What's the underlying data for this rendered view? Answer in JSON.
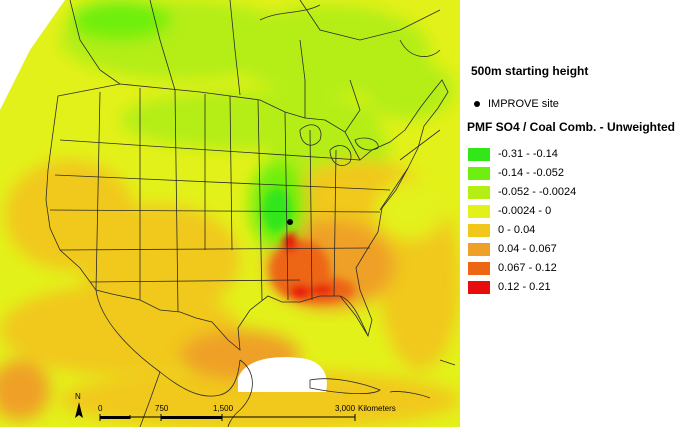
{
  "map": {
    "title": "500m starting height",
    "site_label": "IMPROVE site",
    "legend_title": "PMF SO4 / Coal Comb. - Unweighted",
    "legend": [
      {
        "range": "-0.31 - -0.14",
        "color": "#33e61a"
      },
      {
        "range": "-0.14 - -0.052",
        "color": "#6eef10"
      },
      {
        "range": "-0.052 - -0.0024",
        "color": "#b4ee13"
      },
      {
        "range": "-0.0024 - 0",
        "color": "#e3f11a"
      },
      {
        "range": "0 - 0.04",
        "color": "#f1c81a"
      },
      {
        "range": "0.04 - 0.067",
        "color": "#efa028"
      },
      {
        "range": "0.067 - 0.12",
        "color": "#ed6614"
      },
      {
        "range": "0.12 - 0.21",
        "color": "#e80d0d"
      }
    ],
    "scale": {
      "ticks": [
        "0",
        "750",
        "1,500",
        "3,000"
      ],
      "unit": "Kilometers"
    },
    "north_label": "N"
  }
}
